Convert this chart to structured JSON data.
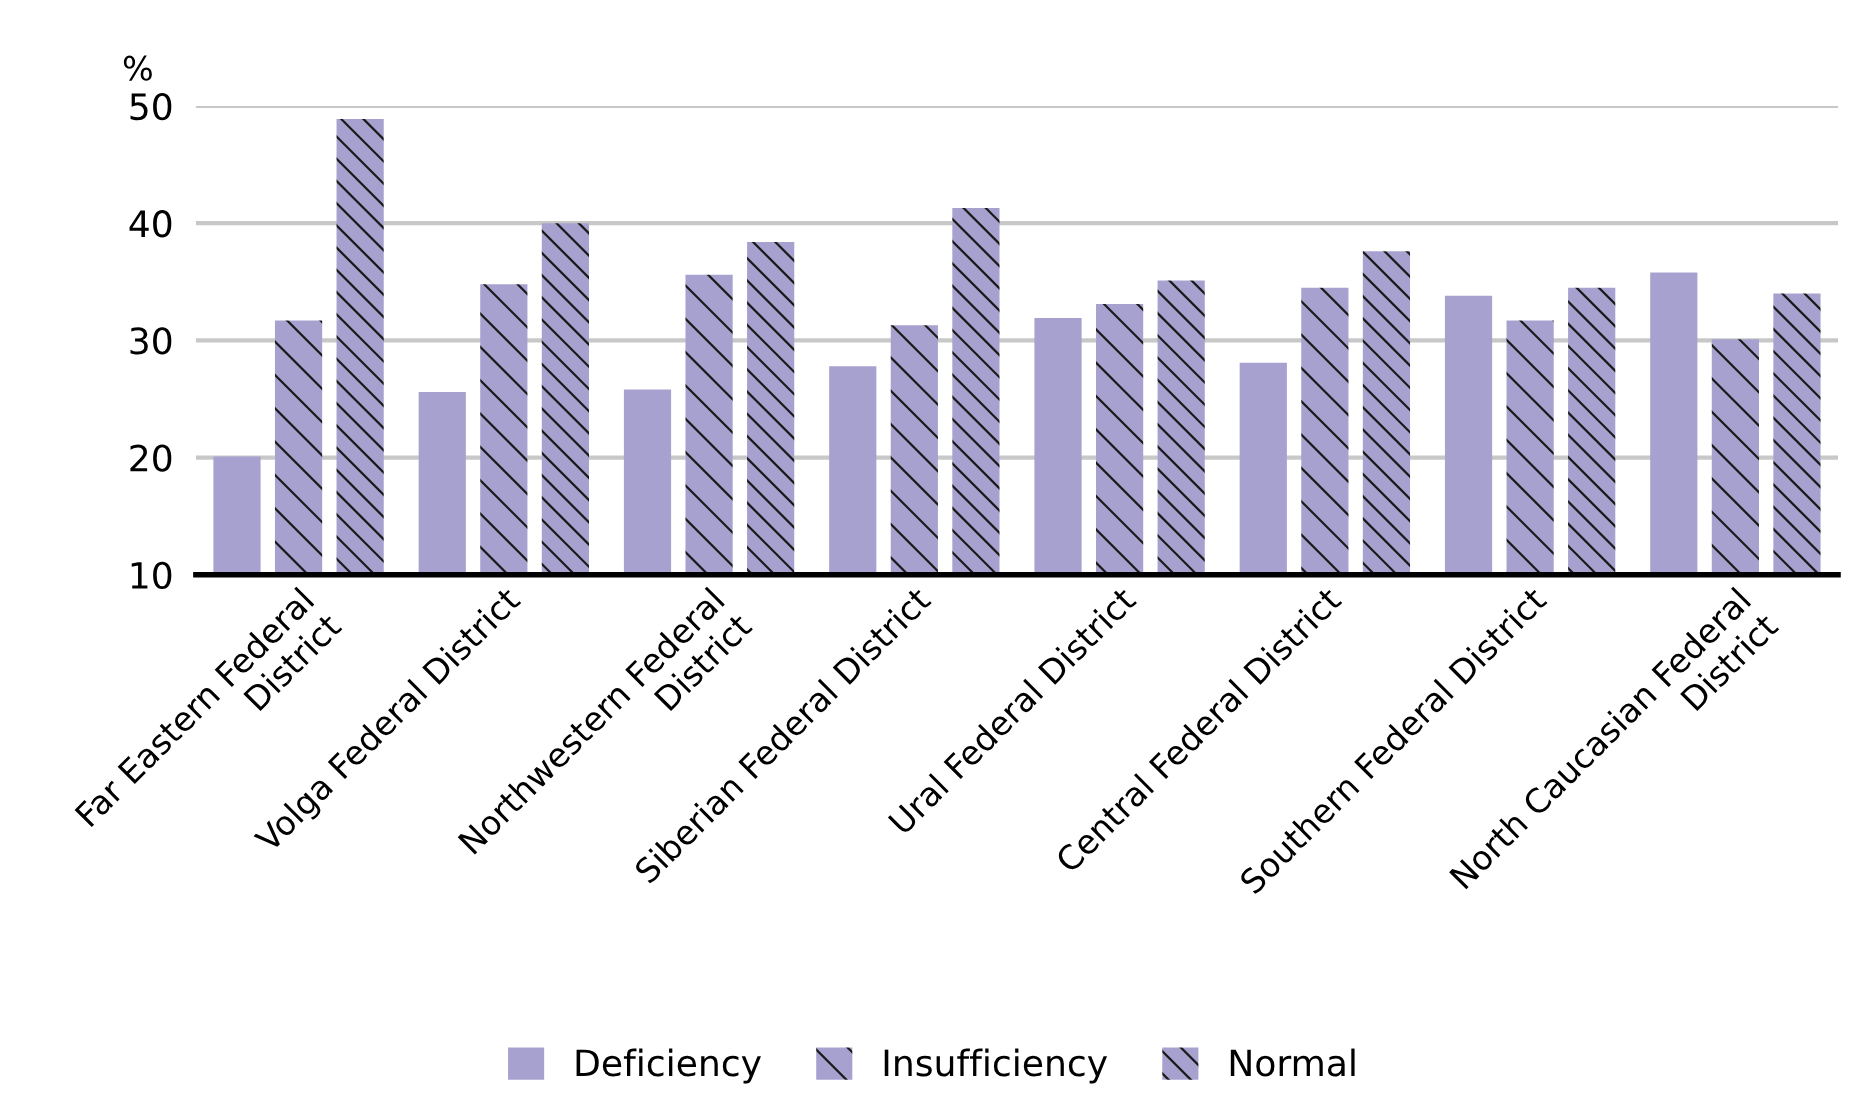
{
  "chart_data": {
    "type": "bar",
    "ylabel": "%",
    "categories": [
      "Far Eastern Federal\nDistrict",
      "Volga Federal District",
      "Northwestern Federal\nDistrict",
      "Siberian Federal District",
      "Ural Federal District",
      "Central Federal District",
      "Southern Federal District",
      "North Caucasian Federal\nDistrict"
    ],
    "series": [
      {
        "name": "Deficiency",
        "color": "#a7a1d0",
        "values": [
          20.1,
          25.6,
          25.8,
          27.8,
          31.9,
          28.1,
          33.8,
          35.8
        ]
      },
      {
        "name": "Insufficiency",
        "color": "#a7a1d0",
        "values": [
          31.7,
          34.8,
          35.6,
          31.3,
          33.1,
          34.5,
          31.7,
          30.1
        ]
      },
      {
        "name": "Normal",
        "color": "#a7a1d0",
        "values": [
          48.9,
          40.0,
          38.4,
          41.3,
          35.1,
          37.6,
          34.5,
          34.0
        ]
      }
    ],
    "ylim": [
      10,
      50
    ],
    "yticks": [
      10,
      20,
      30,
      40,
      50
    ],
    "grid": "y",
    "legend": "bottom"
  }
}
